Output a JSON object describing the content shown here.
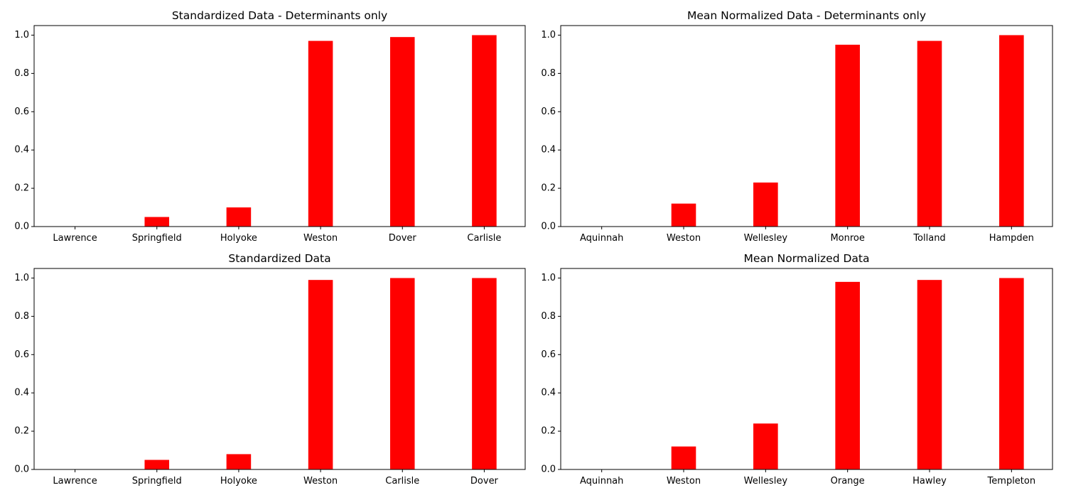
{
  "figure": {
    "bar_color": "#ff0000",
    "axis_color": "#000000",
    "background": "#ffffff"
  },
  "chart_data": [
    {
      "type": "bar",
      "title": "Standardized Data - Determinants only",
      "categories": [
        "Lawrence",
        "Springfield",
        "Holyoke",
        "Weston",
        "Dover",
        "Carlisle"
      ],
      "values": [
        0.0,
        0.05,
        0.1,
        0.97,
        0.99,
        1.0
      ],
      "ylim": [
        0,
        1.05
      ],
      "yticks": [
        0.0,
        0.2,
        0.4,
        0.6,
        0.8,
        1.0
      ],
      "ytick_labels": [
        "0.0",
        "0.2",
        "0.4",
        "0.6",
        "0.8",
        "1.0"
      ],
      "xlabel": "",
      "ylabel": "",
      "grid": false
    },
    {
      "type": "bar",
      "title": "Mean Normalized Data - Determinants only",
      "categories": [
        "Aquinnah",
        "Weston",
        "Wellesley",
        "Monroe",
        "Tolland",
        "Hampden"
      ],
      "values": [
        0.0,
        0.12,
        0.23,
        0.95,
        0.97,
        1.0
      ],
      "ylim": [
        0,
        1.05
      ],
      "yticks": [
        0.0,
        0.2,
        0.4,
        0.6,
        0.8,
        1.0
      ],
      "ytick_labels": [
        "0.0",
        "0.2",
        "0.4",
        "0.6",
        "0.8",
        "1.0"
      ],
      "xlabel": "",
      "ylabel": "",
      "grid": false
    },
    {
      "type": "bar",
      "title": "Standardized Data",
      "categories": [
        "Lawrence",
        "Springfield",
        "Holyoke",
        "Weston",
        "Carlisle",
        "Dover"
      ],
      "values": [
        0.0,
        0.05,
        0.08,
        0.99,
        1.0,
        1.0
      ],
      "ylim": [
        0,
        1.05
      ],
      "yticks": [
        0.0,
        0.2,
        0.4,
        0.6,
        0.8,
        1.0
      ],
      "ytick_labels": [
        "0.0",
        "0.2",
        "0.4",
        "0.6",
        "0.8",
        "1.0"
      ],
      "xlabel": "",
      "ylabel": "",
      "grid": false
    },
    {
      "type": "bar",
      "title": "Mean Normalized Data",
      "categories": [
        "Aquinnah",
        "Weston",
        "Wellesley",
        "Orange",
        "Hawley",
        "Templeton"
      ],
      "values": [
        0.0,
        0.12,
        0.24,
        0.98,
        0.99,
        1.0
      ],
      "ylim": [
        0,
        1.05
      ],
      "yticks": [
        0.0,
        0.2,
        0.4,
        0.6,
        0.8,
        1.0
      ],
      "ytick_labels": [
        "0.0",
        "0.2",
        "0.4",
        "0.6",
        "0.8",
        "1.0"
      ],
      "xlabel": "",
      "ylabel": "",
      "grid": false
    }
  ]
}
